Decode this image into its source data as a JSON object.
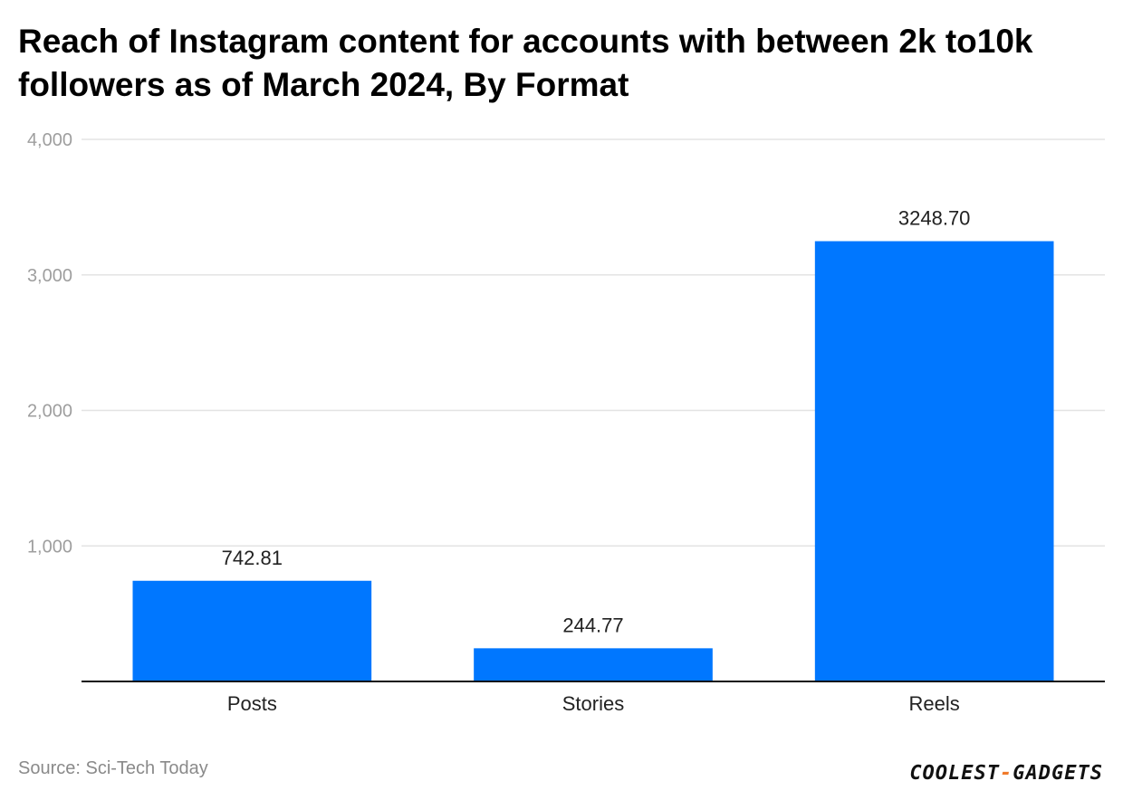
{
  "title": "Reach of Instagram content for accounts with between 2k to10k followers as of March 2024, By Format",
  "source": "Source: Sci-Tech Today",
  "logo": {
    "part1": "COOLEST",
    "separator": "-",
    "part2": "GADGETS"
  },
  "colors": {
    "bar": "#0077ff",
    "gridline": "#e3e3e3",
    "axis": "#111111",
    "logo_accent": "#f07a2a"
  },
  "chart_data": {
    "type": "bar",
    "title": "Reach of Instagram content for accounts with between 2k to10k followers as of March 2024, By Format",
    "xlabel": "",
    "ylabel": "",
    "categories": [
      "Posts",
      "Stories",
      "Reels"
    ],
    "values": [
      742.81,
      244.77,
      3248.7
    ],
    "value_labels": [
      "742.81",
      "244.77",
      "3248.70"
    ],
    "ylim": [
      0,
      4000
    ],
    "yticks": [
      1000,
      2000,
      3000,
      4000
    ],
    "ytick_labels": [
      "1,000",
      "2,000",
      "3,000",
      "4,000"
    ],
    "grid": true,
    "legend": "none"
  }
}
